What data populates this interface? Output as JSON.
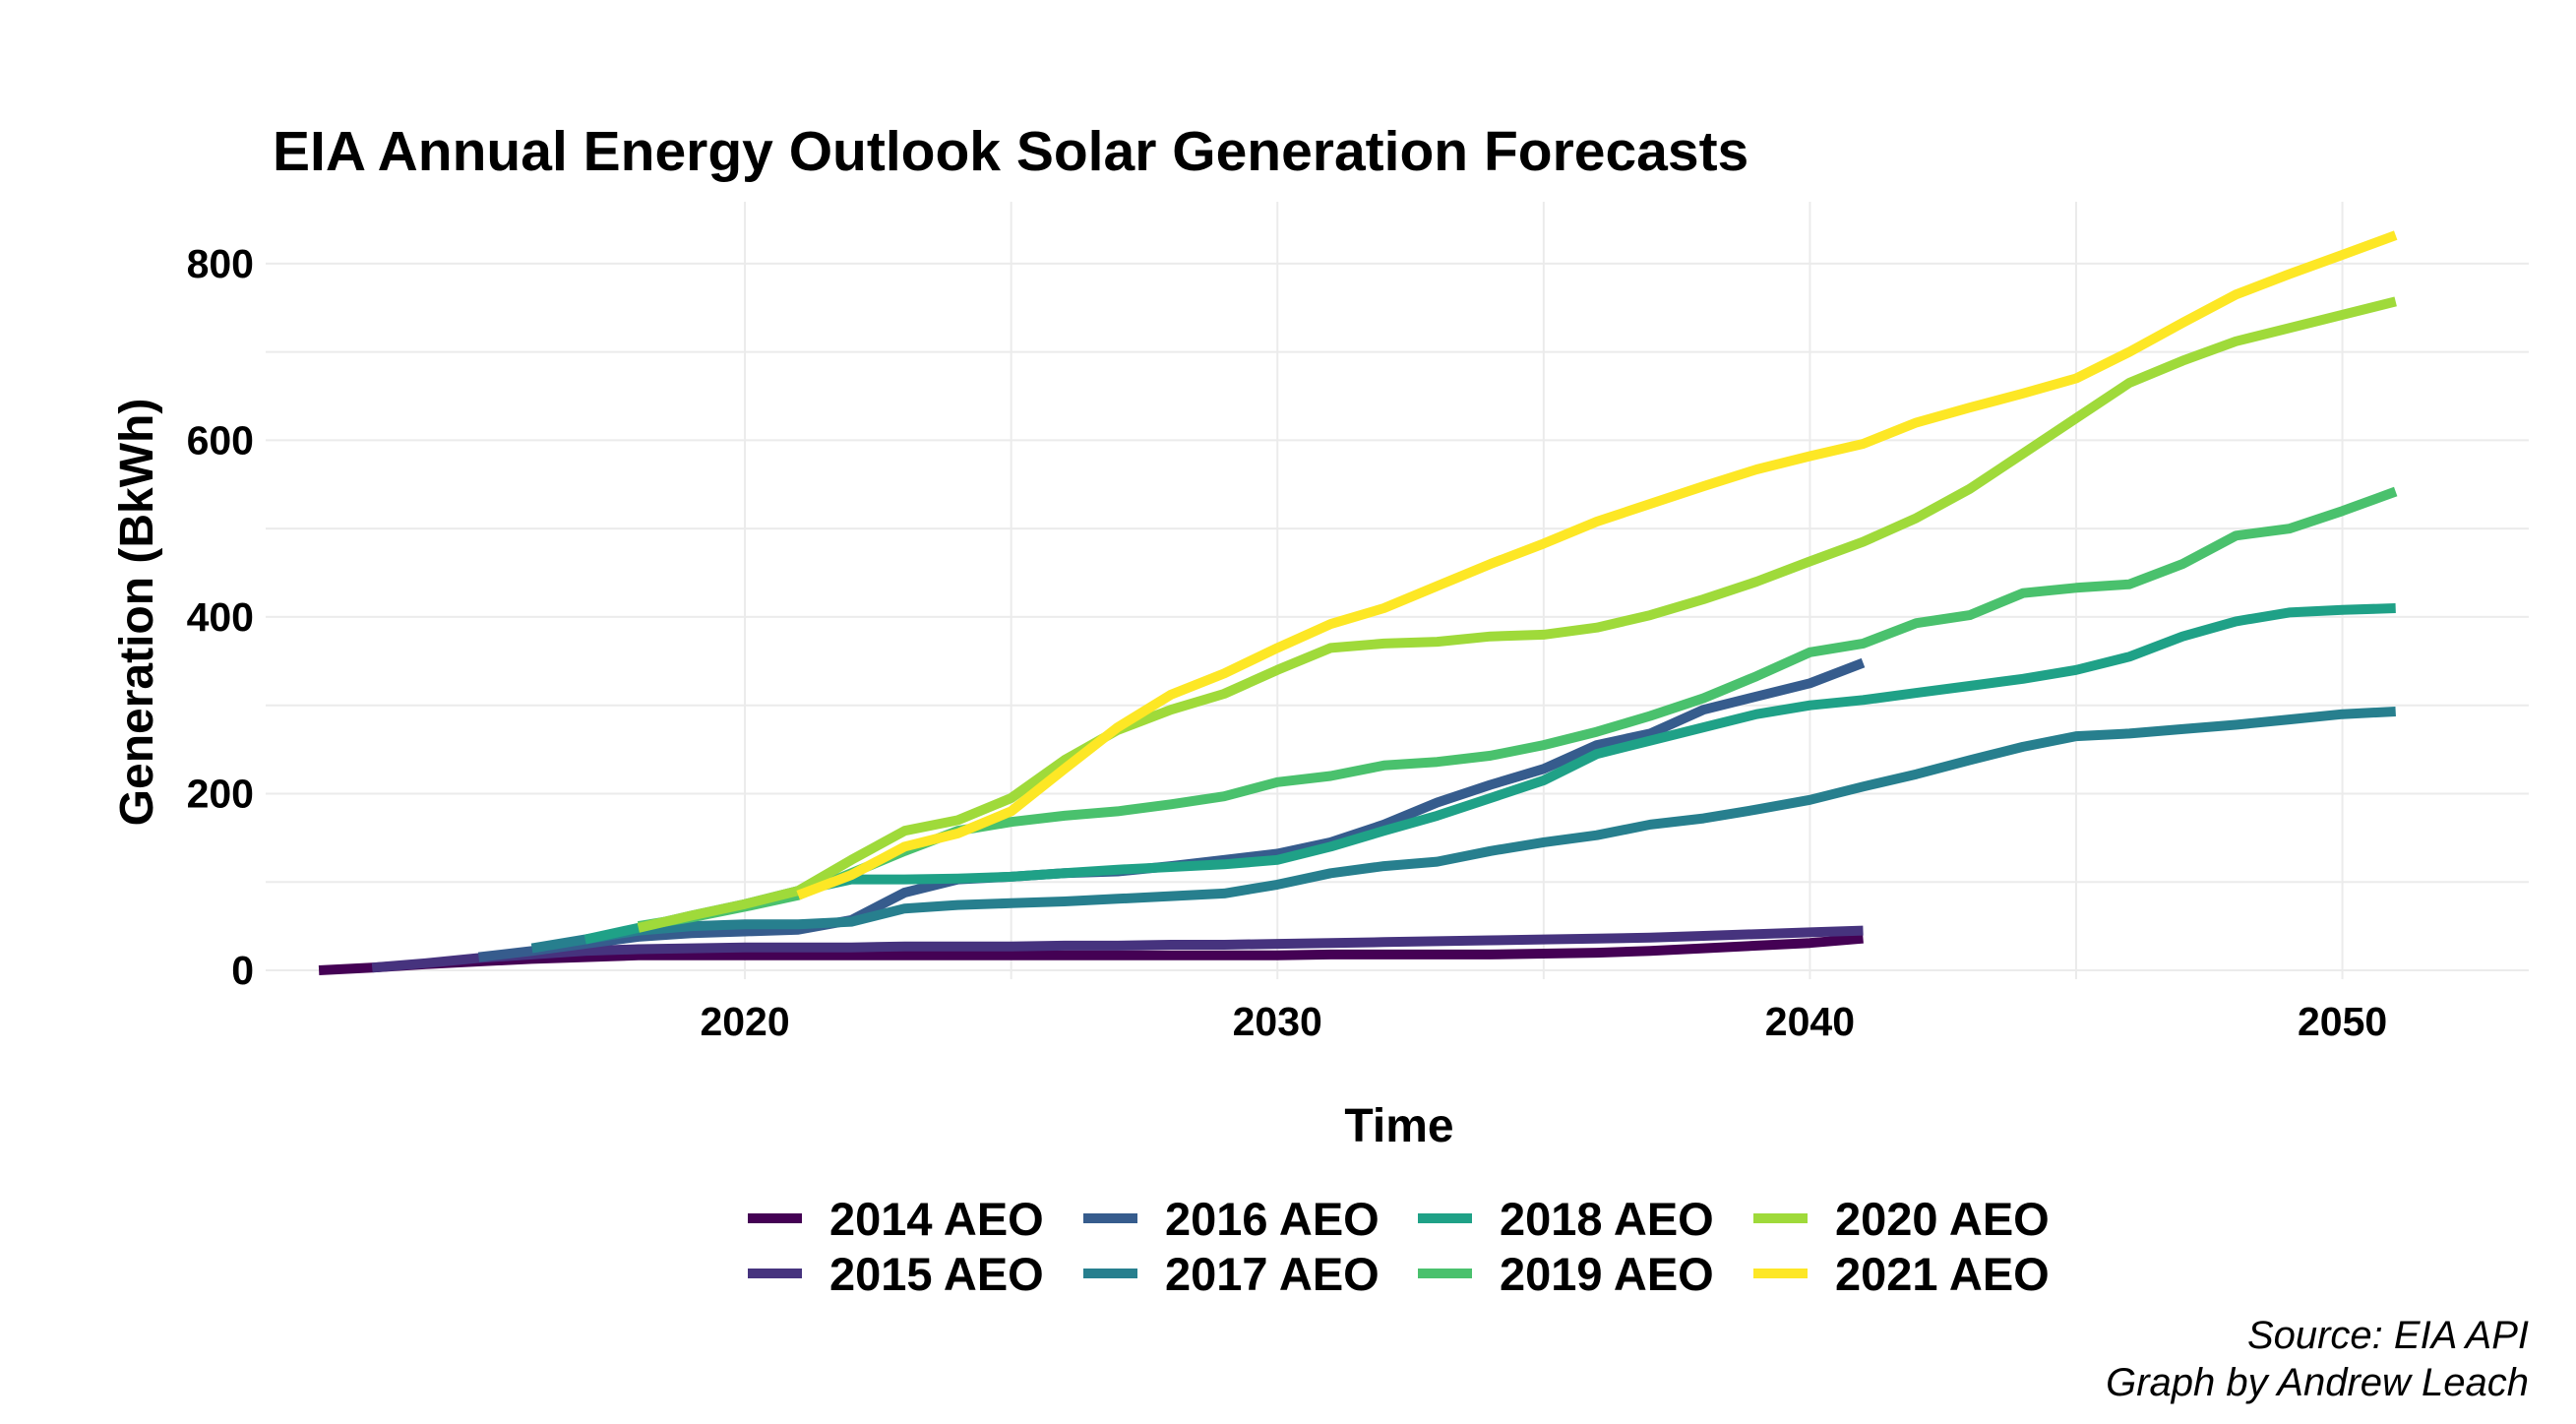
{
  "chart_data": {
    "type": "line",
    "title": "EIA Annual Energy Outlook Solar Generation Forecasts",
    "xlabel": "Time",
    "ylabel": "Generation (BkWh)",
    "xlim": [
      2011,
      2053.5
    ],
    "ylim": [
      -10,
      870
    ],
    "x_ticks": [
      2020,
      2030,
      2040,
      2050
    ],
    "y_ticks": [
      0,
      200,
      400,
      600,
      800
    ],
    "grid": true,
    "legend_position": "bottom",
    "caption": [
      "Source: EIA API",
      "Graph by Andrew Leach"
    ],
    "series": [
      {
        "name": "2014 AEO",
        "color": "#440154",
        "x": [
          2012,
          2013,
          2014,
          2015,
          2016,
          2017,
          2018,
          2019,
          2020,
          2021,
          2022,
          2023,
          2024,
          2025,
          2026,
          2027,
          2028,
          2029,
          2030,
          2031,
          2032,
          2033,
          2034,
          2035,
          2036,
          2037,
          2038,
          2039,
          2040,
          2041
        ],
        "y": [
          0,
          3,
          7,
          10,
          13,
          15,
          17,
          17,
          17,
          17,
          17,
          17,
          17,
          17,
          17,
          17,
          17,
          17,
          17,
          18,
          18,
          18,
          18,
          19,
          20,
          22,
          25,
          28,
          31,
          36
        ]
      },
      {
        "name": "2015 AEO",
        "color": "#46337e",
        "x": [
          2013,
          2014,
          2015,
          2016,
          2017,
          2018,
          2019,
          2020,
          2021,
          2022,
          2023,
          2024,
          2025,
          2026,
          2027,
          2028,
          2029,
          2030,
          2031,
          2032,
          2033,
          2034,
          2035,
          2036,
          2037,
          2038,
          2039,
          2040,
          2041
        ],
        "y": [
          3,
          8,
          14,
          18,
          22,
          24,
          25,
          26,
          26,
          26,
          27,
          27,
          27,
          28,
          28,
          29,
          29,
          30,
          31,
          32,
          33,
          34,
          35,
          36,
          37,
          39,
          41,
          43,
          45
        ]
      },
      {
        "name": "2016 AEO",
        "color": "#365c8d",
        "x": [
          2015,
          2016,
          2017,
          2018,
          2019,
          2020,
          2021,
          2022,
          2023,
          2024,
          2025,
          2026,
          2027,
          2028,
          2029,
          2030,
          2031,
          2032,
          2033,
          2034,
          2035,
          2036,
          2037,
          2038,
          2039,
          2040,
          2041
        ],
        "y": [
          15,
          22,
          30,
          38,
          42,
          44,
          46,
          57,
          88,
          103,
          106,
          110,
          112,
          118,
          125,
          132,
          145,
          165,
          190,
          210,
          228,
          255,
          268,
          295,
          310,
          325,
          348
        ]
      },
      {
        "name": "2017 AEO",
        "color": "#277f8e",
        "x": [
          2016,
          2017,
          2018,
          2019,
          2020,
          2021,
          2022,
          2023,
          2024,
          2025,
          2026,
          2027,
          2028,
          2029,
          2030,
          2031,
          2032,
          2033,
          2034,
          2035,
          2036,
          2037,
          2038,
          2039,
          2040,
          2041,
          2042,
          2043,
          2044,
          2045,
          2046,
          2047,
          2048,
          2049,
          2050,
          2051
        ],
        "y": [
          25,
          35,
          45,
          50,
          52,
          52,
          55,
          70,
          74,
          76,
          78,
          81,
          84,
          87,
          97,
          110,
          118,
          123,
          135,
          145,
          153,
          165,
          172,
          182,
          193,
          208,
          222,
          238,
          253,
          265,
          268,
          273,
          278,
          284,
          290,
          293
        ]
      },
      {
        "name": "2018 AEO",
        "color": "#1fa187",
        "x": [
          2017,
          2018,
          2019,
          2020,
          2021,
          2022,
          2023,
          2024,
          2025,
          2026,
          2027,
          2028,
          2029,
          2030,
          2031,
          2032,
          2033,
          2034,
          2035,
          2036,
          2037,
          2038,
          2039,
          2040,
          2041,
          2042,
          2043,
          2044,
          2045,
          2046,
          2047,
          2048,
          2049,
          2050,
          2051
        ],
        "y": [
          35,
          48,
          62,
          75,
          90,
          103,
          103,
          104,
          106,
          110,
          114,
          117,
          120,
          125,
          140,
          158,
          175,
          195,
          215,
          245,
          260,
          275,
          290,
          300,
          306,
          314,
          322,
          330,
          340,
          355,
          378,
          395,
          405,
          408,
          410
        ]
      },
      {
        "name": "2019 AEO",
        "color": "#4ac16d",
        "x": [
          2018,
          2019,
          2020,
          2021,
          2022,
          2023,
          2024,
          2025,
          2026,
          2027,
          2028,
          2029,
          2030,
          2031,
          2032,
          2033,
          2034,
          2035,
          2036,
          2037,
          2038,
          2039,
          2040,
          2041,
          2042,
          2043,
          2044,
          2045,
          2046,
          2047,
          2048,
          2049,
          2050,
          2051
        ],
        "y": [
          50,
          60,
          72,
          85,
          110,
          135,
          158,
          168,
          175,
          180,
          188,
          197,
          213,
          220,
          232,
          236,
          243,
          255,
          270,
          288,
          308,
          333,
          360,
          370,
          393,
          402,
          427,
          433,
          437,
          460,
          492,
          500,
          520,
          542
        ]
      },
      {
        "name": "2020 AEO",
        "color": "#9fda3a",
        "x": [
          2018,
          2019,
          2020,
          2021,
          2022,
          2023,
          2024,
          2025,
          2026,
          2027,
          2028,
          2029,
          2030,
          2031,
          2032,
          2033,
          2034,
          2035,
          2036,
          2037,
          2038,
          2039,
          2040,
          2041,
          2042,
          2043,
          2044,
          2045,
          2046,
          2047,
          2048,
          2049,
          2050,
          2051
        ],
        "y": [
          48,
          62,
          75,
          90,
          125,
          158,
          170,
          195,
          238,
          272,
          295,
          313,
          340,
          365,
          370,
          372,
          378,
          380,
          388,
          402,
          420,
          440,
          463,
          485,
          512,
          545,
          585,
          625,
          665,
          690,
          712,
          727,
          742,
          757
        ]
      },
      {
        "name": "2021 AEO",
        "color": "#fde725",
        "x": [
          2021,
          2022,
          2023,
          2024,
          2025,
          2026,
          2027,
          2028,
          2029,
          2030,
          2031,
          2032,
          2033,
          2034,
          2035,
          2036,
          2037,
          2038,
          2039,
          2040,
          2041,
          2042,
          2043,
          2044,
          2045,
          2046,
          2047,
          2048,
          2049,
          2050,
          2051
        ],
        "y": [
          85,
          108,
          140,
          155,
          180,
          228,
          275,
          312,
          336,
          365,
          392,
          410,
          435,
          460,
          483,
          508,
          528,
          548,
          567,
          582,
          596,
          620,
          637,
          653,
          670,
          700,
          733,
          765,
          788,
          810,
          832
        ]
      }
    ]
  }
}
